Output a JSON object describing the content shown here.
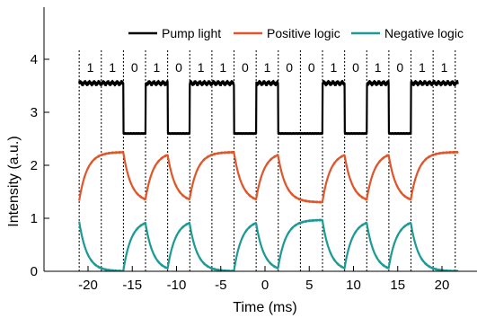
{
  "chart_data": {
    "type": "line",
    "xlabel": "Time (ms)",
    "ylabel": "Intensity (a.u.)",
    "xlim": [
      -21.5,
      21.5
    ],
    "ylim": [
      0,
      5
    ],
    "x_ticks": [
      "-20",
      "-15",
      "-10",
      "-5",
      "0",
      "5",
      "10",
      "15",
      "20"
    ],
    "y_ticks": [
      "0",
      "1",
      "2",
      "3",
      "4"
    ],
    "legend_position": "top",
    "bit_period_ms": 2.5,
    "bit_sequence": [
      "1",
      "1",
      "0",
      "1",
      "0",
      "1",
      "1",
      "0",
      "1",
      "0",
      "0",
      "1",
      "0",
      "1",
      "0",
      "1",
      "1"
    ],
    "series": [
      {
        "name": "Pump light",
        "color": "#000000",
        "low": 2.6,
        "high": 3.55
      },
      {
        "name": "Positive logic",
        "color": "#e0562a",
        "low": 1.3,
        "high": 2.25
      },
      {
        "name": "Negative logic",
        "color": "#1b9a96",
        "low": 0.0,
        "high": 0.97
      }
    ]
  }
}
